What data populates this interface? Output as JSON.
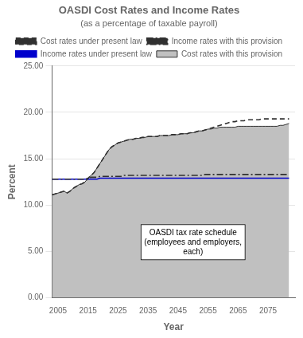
{
  "chart_data": {
    "type": "line",
    "title": "OASDI Cost Rates and Income Rates",
    "subtitle": "(as a percentage of taxable payroll)",
    "xlabel": "Year",
    "ylabel": "Percent",
    "xlim": [
      2003,
      2084
    ],
    "ylim": [
      0.0,
      25.0
    ],
    "xticks": [
      2005,
      2015,
      2025,
      2035,
      2045,
      2055,
      2065,
      2075
    ],
    "yticks": [
      {
        "value": 0.0,
        "label": "0.00"
      },
      {
        "value": 5.0,
        "label": "5.00"
      },
      {
        "value": 10.0,
        "label": "10.00"
      },
      {
        "value": 15.0,
        "label": "15.00"
      },
      {
        "value": 20.0,
        "label": "20.00"
      },
      {
        "value": 25.0,
        "label": "25.00"
      }
    ],
    "grid": "y",
    "legend": "top",
    "x": [
      2003,
      2004,
      2005,
      2006,
      2007,
      2008,
      2009,
      2010,
      2011,
      2012,
      2013,
      2014,
      2015,
      2016,
      2017,
      2018,
      2019,
      2020,
      2021,
      2022,
      2023,
      2024,
      2025,
      2026,
      2027,
      2028,
      2029,
      2030,
      2031,
      2032,
      2033,
      2034,
      2035,
      2036,
      2037,
      2038,
      2039,
      2040,
      2041,
      2042,
      2043,
      2044,
      2045,
      2046,
      2047,
      2048,
      2049,
      2050,
      2051,
      2052,
      2053,
      2054,
      2055,
      2056,
      2057,
      2058,
      2059,
      2060,
      2061,
      2062,
      2063,
      2064,
      2065,
      2066,
      2067,
      2068,
      2069,
      2070,
      2071,
      2072,
      2073,
      2074,
      2075,
      2076,
      2077,
      2078,
      2079,
      2080,
      2081,
      2082
    ],
    "series": [
      {
        "name": "Cost rates with this provision",
        "type": "area",
        "color": "#c0c0c0",
        "line_style": "solid",
        "values": [
          11.1,
          11.2,
          11.3,
          11.4,
          11.5,
          11.3,
          11.5,
          11.8,
          12.0,
          12.2,
          12.3,
          12.5,
          12.9,
          13.2,
          13.5,
          14.0,
          14.5,
          15.0,
          15.5,
          16.0,
          16.3,
          16.5,
          16.7,
          16.8,
          16.9,
          17.0,
          17.1,
          17.1,
          17.2,
          17.2,
          17.3,
          17.3,
          17.4,
          17.4,
          17.4,
          17.4,
          17.5,
          17.5,
          17.5,
          17.5,
          17.6,
          17.6,
          17.6,
          17.7,
          17.7,
          17.7,
          17.8,
          17.8,
          17.9,
          18.0,
          18.0,
          18.1,
          18.2,
          18.2,
          18.3,
          18.3,
          18.4,
          18.4,
          18.4,
          18.4,
          18.4,
          18.4,
          18.5,
          18.5,
          18.5,
          18.5,
          18.5,
          18.5,
          18.5,
          18.5,
          18.5,
          18.5,
          18.5,
          18.5,
          18.5,
          18.5,
          18.6,
          18.6,
          18.7,
          18.8
        ]
      },
      {
        "name": "Cost rates under present law",
        "type": "line",
        "color": "#303030",
        "line_style": "dashed",
        "values": [
          11.1,
          11.2,
          11.3,
          11.4,
          11.5,
          11.3,
          11.5,
          11.8,
          12.0,
          12.2,
          12.3,
          12.5,
          12.9,
          13.2,
          13.5,
          14.0,
          14.5,
          15.0,
          15.5,
          16.0,
          16.3,
          16.5,
          16.7,
          16.8,
          16.9,
          17.0,
          17.1,
          17.1,
          17.2,
          17.2,
          17.3,
          17.3,
          17.4,
          17.4,
          17.4,
          17.4,
          17.5,
          17.5,
          17.5,
          17.5,
          17.6,
          17.6,
          17.6,
          17.7,
          17.7,
          17.7,
          17.8,
          17.8,
          17.9,
          18.0,
          18.0,
          18.1,
          18.2,
          18.3,
          18.4,
          18.5,
          18.6,
          18.7,
          18.8,
          18.9,
          19.0,
          19.0,
          19.1,
          19.1,
          19.1,
          19.2,
          19.2,
          19.2,
          19.2,
          19.2,
          19.3,
          19.3,
          19.3,
          19.3,
          19.3,
          19.3,
          19.3,
          19.3,
          19.3,
          19.3
        ]
      },
      {
        "name": "Income rates with this provision",
        "type": "line",
        "color": "#303030",
        "line_style": "dashdot",
        "values": [
          12.8,
          12.8,
          12.8,
          12.8,
          12.8,
          12.8,
          12.8,
          12.8,
          12.8,
          12.8,
          12.8,
          12.8,
          12.9,
          13.0,
          13.0,
          13.0,
          13.1,
          13.1,
          13.1,
          13.1,
          13.1,
          13.1,
          13.1,
          13.1,
          13.2,
          13.2,
          13.2,
          13.2,
          13.2,
          13.2,
          13.2,
          13.2,
          13.2,
          13.2,
          13.2,
          13.2,
          13.2,
          13.2,
          13.2,
          13.2,
          13.2,
          13.2,
          13.2,
          13.2,
          13.2,
          13.2,
          13.2,
          13.2,
          13.2,
          13.2,
          13.2,
          13.3,
          13.3,
          13.3,
          13.3,
          13.3,
          13.3,
          13.3,
          13.3,
          13.3,
          13.3,
          13.3,
          13.3,
          13.3,
          13.3,
          13.3,
          13.3,
          13.3,
          13.3,
          13.3,
          13.3,
          13.3,
          13.3,
          13.3,
          13.3,
          13.3,
          13.3,
          13.3,
          13.3,
          13.3
        ]
      },
      {
        "name": "Income rates under present law",
        "type": "line",
        "color": "#0000cc",
        "line_style": "solid",
        "values": [
          12.8,
          12.8,
          12.8,
          12.8,
          12.8,
          12.8,
          12.8,
          12.8,
          12.8,
          12.8,
          12.8,
          12.8,
          12.8,
          12.8,
          12.8,
          12.8,
          12.9,
          12.9,
          12.9,
          12.9,
          12.9,
          12.9,
          12.9,
          12.9,
          12.9,
          12.9,
          12.9,
          12.9,
          12.9,
          12.9,
          12.9,
          12.9,
          12.9,
          12.9,
          12.9,
          12.9,
          12.9,
          12.9,
          12.9,
          12.9,
          12.9,
          12.9,
          12.9,
          12.9,
          12.9,
          12.9,
          12.9,
          12.9,
          12.9,
          12.9,
          12.9,
          12.9,
          12.9,
          12.9,
          12.9,
          12.9,
          12.9,
          12.9,
          12.9,
          12.9,
          12.9,
          12.9,
          12.9,
          12.9,
          12.9,
          12.9,
          12.9,
          12.9,
          12.9,
          12.9,
          12.9,
          12.9,
          12.9,
          12.9,
          12.9,
          12.9,
          12.9,
          12.9,
          12.9,
          12.9
        ]
      }
    ],
    "annotations": [
      {
        "text": "OASDI tax rate schedule\n(employees and employers,\neach)",
        "x": 2050,
        "y": 6.0
      }
    ]
  }
}
